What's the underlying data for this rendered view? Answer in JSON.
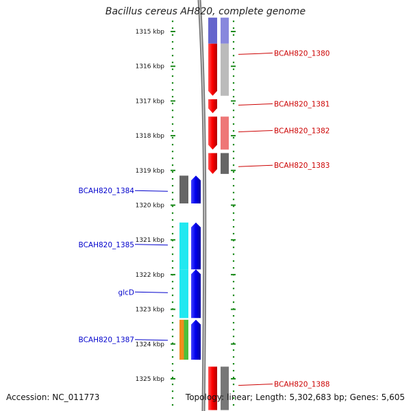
{
  "title": "Bacillus cereus AH820, complete genome",
  "accession": {
    "label": "Accession:",
    "value": "NC_011773"
  },
  "topology": {
    "label": "Topology:",
    "value": "linear;",
    "length_label": "Length:",
    "length": "5,302,683 bp;",
    "genes_label": "Genes:",
    "genes": "5,605"
  },
  "ruler": [
    {
      "label": "1315 kbp",
      "kbp": 1315
    },
    {
      "label": "1316 kbp",
      "kbp": 1316
    },
    {
      "label": "1317 kbp",
      "kbp": 1317
    },
    {
      "label": "1318 kbp",
      "kbp": 1318
    },
    {
      "label": "1319 kbp",
      "kbp": 1319
    },
    {
      "label": "1320 kbp",
      "kbp": 1320
    },
    {
      "label": "1321 kbp",
      "kbp": 1321
    },
    {
      "label": "1322 kbp",
      "kbp": 1322
    },
    {
      "label": "1323 kbp",
      "kbp": 1323
    },
    {
      "label": "1324 kbp",
      "kbp": 1324
    },
    {
      "label": "1325 kbp",
      "kbp": 1325
    }
  ],
  "colors": {
    "forward_gene": "#ff0000",
    "reverse_gene": "#0000ee",
    "forward_label": "#cc0000",
    "reverse_label": "#0000cc",
    "ruler": "#1a8a1a",
    "backbone": "#888888"
  },
  "genes": [
    {
      "name": "BCAH820_1380",
      "strand": "+",
      "start_kbp": 1314.6,
      "end_kbp": 1315.35,
      "class_color": "#8888dd",
      "arrow": false,
      "label_kbp": null
    },
    {
      "name": "BCAH820_1380",
      "strand": "+",
      "start_kbp": 1315.35,
      "end_kbp": 1316.85,
      "class_color": "#bbbbbb",
      "arrow": true,
      "label_kbp": 1315.62
    },
    {
      "name": "BCAH820_1381",
      "strand": "+",
      "start_kbp": 1316.95,
      "end_kbp": 1317.35,
      "class_color": null,
      "arrow": true,
      "label_kbp": 1317.08
    },
    {
      "name": "BCAH820_1382",
      "strand": "+",
      "start_kbp": 1317.45,
      "end_kbp": 1318.4,
      "class_color": "#ee7777",
      "arrow": true,
      "label_kbp": 1317.85
    },
    {
      "name": "BCAH820_1383",
      "strand": "+",
      "start_kbp": 1318.5,
      "end_kbp": 1319.1,
      "class_color": "#666666",
      "arrow": true,
      "label_kbp": 1318.85
    },
    {
      "name": "BCAH820_1384",
      "strand": "-",
      "start_kbp": 1319.15,
      "end_kbp": 1319.95,
      "class_color": "#666666",
      "arrow": true,
      "label_kbp": 1319.58
    },
    {
      "name": "BCAH820_1385",
      "strand": "-",
      "start_kbp": 1320.5,
      "end_kbp": 1321.85,
      "class_color": "#22e8f0",
      "arrow": true,
      "label_kbp": 1321.13
    },
    {
      "name": "glcD",
      "strand": "-",
      "start_kbp": 1321.85,
      "end_kbp": 1323.25,
      "class_color": "#22e8f0",
      "arrow": true,
      "label_kbp": 1322.5
    },
    {
      "name": "BCAH820_1387",
      "strand": "-",
      "start_kbp": 1323.3,
      "end_kbp": 1324.45,
      "class_color": [
        "#f08c1c",
        "#4cbf3a"
      ],
      "arrow": true,
      "label_kbp": 1323.87
    },
    {
      "name": "BCAH820_1388",
      "strand": "+",
      "start_kbp": 1324.65,
      "end_kbp": 1325.9,
      "class_color": "#777777",
      "arrow": false,
      "label_kbp": 1325.15
    }
  ]
}
